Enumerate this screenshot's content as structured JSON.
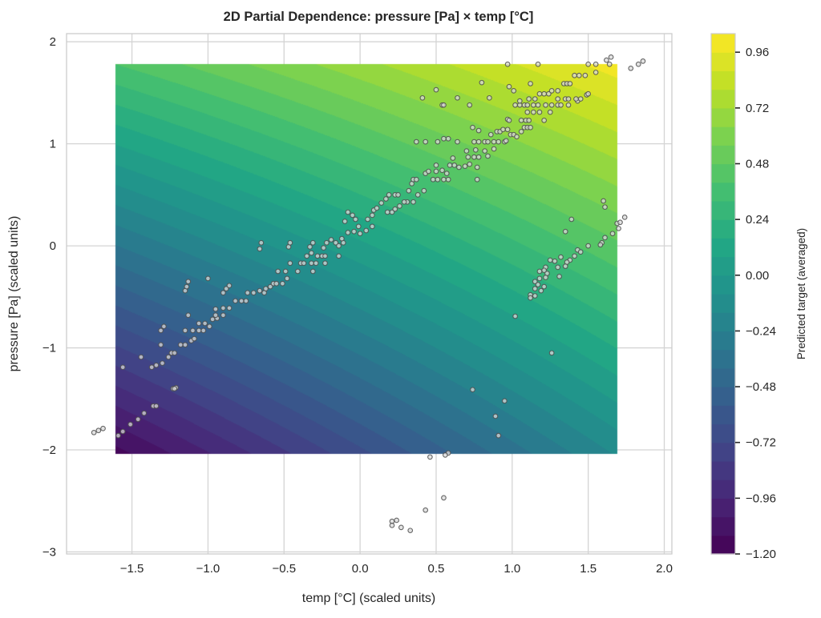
{
  "chart_data": {
    "type": "heatmap",
    "title": "2D Partial Dependence: pressure [Pa] × temp [°C]",
    "xlabel": "temp [°C] (scaled units)",
    "ylabel": "pressure [Pa] (scaled units)",
    "xlim": [
      -1.93,
      2.05
    ],
    "ylim": [
      -3.02,
      2.08
    ],
    "x_ticks": [
      "−1.5",
      "−1.0",
      "−0.5",
      "0.0",
      "0.5",
      "1.0",
      "1.5",
      "2.0"
    ],
    "x_tick_values": [
      -1.5,
      -1.0,
      -0.5,
      0.0,
      0.5,
      1.0,
      1.5,
      2.0
    ],
    "y_ticks": [
      "−3",
      "−2",
      "−1",
      "0",
      "1",
      "2"
    ],
    "y_tick_values": [
      -3,
      -2,
      -1,
      0,
      1,
      2
    ],
    "grid": true,
    "contour": {
      "x_range": [
        -1.61,
        1.69
      ],
      "y_range": [
        -2.04,
        1.78
      ],
      "z_corners": {
        "bottom_left": -1.15,
        "bottom_right": -0.15,
        "top_left": 0.4,
        "top_right": 1.0
      },
      "levels": {
        "min": -1.2,
        "max": 1.04,
        "step": 0.08
      },
      "colormap": "viridis"
    },
    "colorbar": {
      "label": "Predicted target (averaged)",
      "ticks": [
        "−1.20",
        "−0.96",
        "−0.72",
        "−0.48",
        "−0.24",
        "0.00",
        "0.24",
        "0.48",
        "0.72",
        "0.96"
      ],
      "tick_values": [
        -1.2,
        -0.96,
        -0.72,
        -0.48,
        -0.24,
        0.0,
        0.24,
        0.48,
        0.72,
        0.96
      ],
      "range": [
        -1.2,
        1.04
      ]
    },
    "scatter": {
      "marker_fill": "#d9d9d9",
      "marker_edge": "#4d4d4d",
      "points": [
        [
          -1.75,
          -1.83
        ],
        [
          -1.72,
          -1.81
        ],
        [
          -1.69,
          -1.79
        ],
        [
          -1.59,
          -1.86
        ],
        [
          -1.56,
          -1.82
        ],
        [
          -1.51,
          -1.75
        ],
        [
          -1.46,
          -1.7
        ],
        [
          -1.42,
          -1.64
        ],
        [
          -1.36,
          -1.57
        ],
        [
          -1.34,
          -1.57
        ],
        [
          -1.23,
          -1.4
        ],
        [
          -1.21,
          -1.39
        ],
        [
          -1.22,
          -1.4
        ],
        [
          -1.37,
          -1.19
        ],
        [
          -1.34,
          -1.17
        ],
        [
          -1.3,
          -1.15
        ],
        [
          -1.44,
          -1.09
        ],
        [
          -1.56,
          -1.19
        ],
        [
          -1.26,
          -1.09
        ],
        [
          -1.24,
          -1.05
        ],
        [
          -1.22,
          -1.05
        ],
        [
          -1.18,
          -0.97
        ],
        [
          -1.15,
          -0.97
        ],
        [
          -1.11,
          -0.93
        ],
        [
          -1.09,
          -0.91
        ],
        [
          -1.31,
          -0.97
        ],
        [
          -1.31,
          -0.83
        ],
        [
          -1.29,
          -0.79
        ],
        [
          -1.15,
          -0.83
        ],
        [
          -1.1,
          -0.83
        ],
        [
          -1.06,
          -0.83
        ],
        [
          -1.03,
          -0.83
        ],
        [
          -0.99,
          -0.79
        ],
        [
          -1.06,
          -0.76
        ],
        [
          -1.02,
          -0.76
        ],
        [
          -0.97,
          -0.72
        ],
        [
          -0.94,
          -0.71
        ],
        [
          -0.9,
          -0.68
        ],
        [
          -0.95,
          -0.68
        ],
        [
          -0.86,
          -0.61
        ],
        [
          -0.9,
          -0.61
        ],
        [
          -0.95,
          -0.62
        ],
        [
          -1.13,
          -0.68
        ],
        [
          -1.15,
          -0.44
        ],
        [
          -1.14,
          -0.4
        ],
        [
          -1.13,
          -0.35
        ],
        [
          -1.0,
          -0.32
        ],
        [
          -0.9,
          -0.46
        ],
        [
          -0.88,
          -0.42
        ],
        [
          -0.86,
          -0.39
        ],
        [
          -0.82,
          -0.54
        ],
        [
          -0.78,
          -0.54
        ],
        [
          -0.75,
          -0.54
        ],
        [
          -0.74,
          -0.46
        ],
        [
          -0.7,
          -0.46
        ],
        [
          -0.66,
          -0.44
        ],
        [
          -0.63,
          -0.46
        ],
        [
          -0.62,
          -0.42
        ],
        [
          -0.59,
          -0.4
        ],
        [
          -0.57,
          -0.37
        ],
        [
          -0.55,
          -0.37
        ],
        [
          -0.51,
          -0.37
        ],
        [
          -0.48,
          -0.32
        ],
        [
          -0.54,
          -0.25
        ],
        [
          -0.49,
          -0.25
        ],
        [
          -0.46,
          -0.17
        ],
        [
          -0.41,
          -0.25
        ],
        [
          -0.39,
          -0.17
        ],
        [
          -0.37,
          -0.17
        ],
        [
          -0.32,
          -0.17
        ],
        [
          -0.31,
          -0.25
        ],
        [
          -0.29,
          -0.17
        ],
        [
          -0.23,
          -0.17
        ],
        [
          -0.28,
          -0.1
        ],
        [
          -0.25,
          -0.1
        ],
        [
          -0.23,
          -0.1
        ],
        [
          -0.32,
          -0.07
        ],
        [
          -0.35,
          -0.1
        ],
        [
          -0.33,
          -0.01
        ],
        [
          -0.31,
          0.03
        ],
        [
          -0.24,
          -0.02
        ],
        [
          -0.22,
          0.03
        ],
        [
          -0.19,
          0.06
        ],
        [
          -0.16,
          0.03
        ],
        [
          -0.14,
          0.0
        ],
        [
          -0.11,
          0.03
        ],
        [
          -0.12,
          0.07
        ],
        [
          -0.14,
          -0.1
        ],
        [
          -0.66,
          -0.03
        ],
        [
          -0.65,
          0.03
        ],
        [
          -0.47,
          -0.01
        ],
        [
          -0.46,
          0.03
        ],
        [
          -0.1,
          0.24
        ],
        [
          -0.08,
          0.33
        ],
        [
          -0.05,
          0.3
        ],
        [
          -0.03,
          0.26
        ],
        [
          -0.01,
          0.19
        ],
        [
          -0.08,
          0.13
        ],
        [
          -0.04,
          0.14
        ],
        [
          0.0,
          0.12
        ],
        [
          0.04,
          0.15
        ],
        [
          0.08,
          0.19
        ],
        [
          0.05,
          0.26
        ],
        [
          0.08,
          0.3
        ],
        [
          0.09,
          0.35
        ],
        [
          0.11,
          0.37
        ],
        [
          0.14,
          0.42
        ],
        [
          0.17,
          0.46
        ],
        [
          0.19,
          0.5
        ],
        [
          0.23,
          0.5
        ],
        [
          0.25,
          0.5
        ],
        [
          0.18,
          0.33
        ],
        [
          0.21,
          0.33
        ],
        [
          0.23,
          0.36
        ],
        [
          0.26,
          0.39
        ],
        [
          0.31,
          0.43
        ],
        [
          0.35,
          0.43
        ],
        [
          0.29,
          0.43
        ],
        [
          0.32,
          0.54
        ],
        [
          0.34,
          0.61
        ],
        [
          0.35,
          0.65
        ],
        [
          0.37,
          0.65
        ],
        [
          0.42,
          0.54
        ],
        [
          0.38,
          0.5
        ],
        [
          0.43,
          0.71
        ],
        [
          0.45,
          0.73
        ],
        [
          0.48,
          0.65
        ],
        [
          0.51,
          0.65
        ],
        [
          0.55,
          0.65
        ],
        [
          0.58,
          0.65
        ],
        [
          0.5,
          0.73
        ],
        [
          0.54,
          0.74
        ],
        [
          0.57,
          0.71
        ],
        [
          0.5,
          0.79
        ],
        [
          0.59,
          0.79
        ],
        [
          0.62,
          0.79
        ],
        [
          0.65,
          0.77
        ],
        [
          0.69,
          0.78
        ],
        [
          0.72,
          0.8
        ],
        [
          0.61,
          0.86
        ],
        [
          0.71,
          0.87
        ],
        [
          0.75,
          0.87
        ],
        [
          0.78,
          0.87
        ],
        [
          0.77,
          0.77
        ],
        [
          0.77,
          0.65
        ],
        [
          0.7,
          0.93
        ],
        [
          0.76,
          0.94
        ],
        [
          0.82,
          0.93
        ],
        [
          0.84,
          0.88
        ],
        [
          0.88,
          0.95
        ],
        [
          0.75,
          1.02
        ],
        [
          0.78,
          1.02
        ],
        [
          0.82,
          1.02
        ],
        [
          0.84,
          1.02
        ],
        [
          0.88,
          1.02
        ],
        [
          0.91,
          1.02
        ],
        [
          0.95,
          1.02
        ],
        [
          0.96,
          1.03
        ],
        [
          0.86,
          1.09
        ],
        [
          0.9,
          1.12
        ],
        [
          0.92,
          1.12
        ],
        [
          0.94,
          1.14
        ],
        [
          0.97,
          1.14
        ],
        [
          0.99,
          1.09
        ],
        [
          1.01,
          1.09
        ],
        [
          1.03,
          1.07
        ],
        [
          1.06,
          1.12
        ],
        [
          1.08,
          1.16
        ],
        [
          1.1,
          1.16
        ],
        [
          1.12,
          1.16
        ],
        [
          0.74,
          1.16
        ],
        [
          0.78,
          1.13
        ],
        [
          0.64,
          1.02
        ],
        [
          0.58,
          1.05
        ],
        [
          0.55,
          1.05
        ],
        [
          0.51,
          1.02
        ],
        [
          0.43,
          1.02
        ],
        [
          0.37,
          1.02
        ],
        [
          0.97,
          1.24
        ],
        [
          0.98,
          1.23
        ],
        [
          1.06,
          1.23
        ],
        [
          1.09,
          1.23
        ],
        [
          1.11,
          1.23
        ],
        [
          1.1,
          1.31
        ],
        [
          1.14,
          1.31
        ],
        [
          1.18,
          1.31
        ],
        [
          1.21,
          1.23
        ],
        [
          1.25,
          1.31
        ],
        [
          1.02,
          1.38
        ],
        [
          1.05,
          1.38
        ],
        [
          1.08,
          1.38
        ],
        [
          1.1,
          1.38
        ],
        [
          1.14,
          1.38
        ],
        [
          1.17,
          1.38
        ],
        [
          1.22,
          1.38
        ],
        [
          1.26,
          1.38
        ],
        [
          1.3,
          1.38
        ],
        [
          1.32,
          1.38
        ],
        [
          1.37,
          1.38
        ],
        [
          1.05,
          1.42
        ],
        [
          1.11,
          1.44
        ],
        [
          1.15,
          1.44
        ],
        [
          1.18,
          1.49
        ],
        [
          1.21,
          1.49
        ],
        [
          1.24,
          1.49
        ],
        [
          1.26,
          1.52
        ],
        [
          1.3,
          1.52
        ],
        [
          1.34,
          1.59
        ],
        [
          1.36,
          1.59
        ],
        [
          1.38,
          1.59
        ],
        [
          1.3,
          1.44
        ],
        [
          1.35,
          1.44
        ],
        [
          1.37,
          1.44
        ],
        [
          1.43,
          1.42
        ],
        [
          1.45,
          1.44
        ],
        [
          1.49,
          1.48
        ],
        [
          1.5,
          1.49
        ],
        [
          1.41,
          1.67
        ],
        [
          1.44,
          1.67
        ],
        [
          1.48,
          1.67
        ],
        [
          1.5,
          1.78
        ],
        [
          1.55,
          1.78
        ],
        [
          1.62,
          1.82
        ],
        [
          1.64,
          1.78
        ],
        [
          1.65,
          1.85
        ],
        [
          1.55,
          1.7
        ],
        [
          1.42,
          1.44
        ],
        [
          1.12,
          1.59
        ],
        [
          1.01,
          1.52
        ],
        [
          0.98,
          1.56
        ],
        [
          0.8,
          1.6
        ],
        [
          0.97,
          1.78
        ],
        [
          1.17,
          1.78
        ],
        [
          0.5,
          1.53
        ],
        [
          0.41,
          1.45
        ],
        [
          0.54,
          1.38
        ],
        [
          0.55,
          1.38
        ],
        [
          0.64,
          1.45
        ],
        [
          0.72,
          1.38
        ],
        [
          0.85,
          1.45
        ],
        [
          1.78,
          1.74
        ],
        [
          1.83,
          1.78
        ],
        [
          1.86,
          1.81
        ],
        [
          1.6,
          0.44
        ],
        [
          1.61,
          0.38
        ],
        [
          1.39,
          0.26
        ],
        [
          1.35,
          0.14
        ],
        [
          1.69,
          0.22
        ],
        [
          1.71,
          0.23
        ],
        [
          1.74,
          0.28
        ],
        [
          1.7,
          0.17
        ],
        [
          1.66,
          0.12
        ],
        [
          1.61,
          0.08
        ],
        [
          1.59,
          0.03
        ],
        [
          1.58,
          0.01
        ],
        [
          1.5,
          0.0
        ],
        [
          1.43,
          -0.04
        ],
        [
          1.45,
          -0.06
        ],
        [
          1.41,
          -0.1
        ],
        [
          1.38,
          -0.14
        ],
        [
          1.36,
          -0.16
        ],
        [
          1.35,
          -0.2
        ],
        [
          1.32,
          -0.11
        ],
        [
          1.3,
          -0.21
        ],
        [
          1.28,
          -0.15
        ],
        [
          1.25,
          -0.14
        ],
        [
          1.22,
          -0.21
        ],
        [
          1.23,
          -0.27
        ],
        [
          1.21,
          -0.24
        ],
        [
          1.18,
          -0.25
        ],
        [
          1.22,
          -0.31
        ],
        [
          1.18,
          -0.32
        ],
        [
          1.31,
          -0.3
        ],
        [
          1.15,
          -0.35
        ],
        [
          1.17,
          -0.38
        ],
        [
          1.21,
          -0.4
        ],
        [
          1.19,
          -0.44
        ],
        [
          1.15,
          -0.42
        ],
        [
          1.12,
          -0.48
        ],
        [
          1.15,
          -0.49
        ],
        [
          1.12,
          -0.51
        ],
        [
          1.02,
          -0.69
        ],
        [
          1.26,
          -1.05
        ],
        [
          0.74,
          -1.41
        ],
        [
          0.95,
          -1.52
        ],
        [
          0.89,
          -1.67
        ],
        [
          0.91,
          -1.86
        ],
        [
          0.58,
          -2.03
        ],
        [
          0.56,
          -2.05
        ],
        [
          0.46,
          -2.07
        ],
        [
          0.55,
          -2.47
        ],
        [
          0.43,
          -2.59
        ],
        [
          0.21,
          -2.7
        ],
        [
          0.24,
          -2.69
        ],
        [
          0.27,
          -2.76
        ],
        [
          0.33,
          -2.79
        ],
        [
          0.21,
          -2.74
        ]
      ]
    }
  }
}
